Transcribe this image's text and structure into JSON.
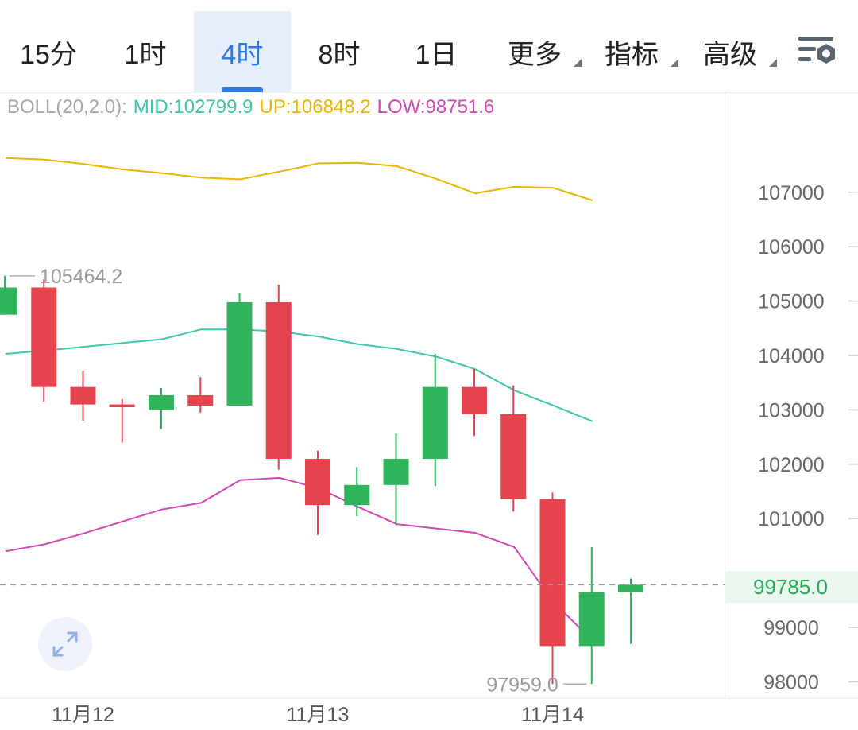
{
  "tabs": [
    {
      "label": "15分",
      "active": false,
      "dropdown": false
    },
    {
      "label": "1时",
      "active": false,
      "dropdown": false
    },
    {
      "label": "4时",
      "active": true,
      "dropdown": false
    },
    {
      "label": "8时",
      "active": false,
      "dropdown": false
    },
    {
      "label": "1日",
      "active": false,
      "dropdown": false
    },
    {
      "label": "更多",
      "active": false,
      "dropdown": true
    },
    {
      "label": "指标",
      "active": false,
      "dropdown": true
    },
    {
      "label": "高级",
      "active": false,
      "dropdown": true
    }
  ],
  "icons": {
    "settings": "chart-settings-icon",
    "expand": "expand-arrows-icon"
  },
  "indicator": {
    "label": "BOLL(20,2.0):",
    "mid": "MID:102799.9",
    "up": "UP:106848.2",
    "low": "LOW:98751.6"
  },
  "colors": {
    "accent": "#2b7ae6",
    "up_candle": "#2fb35b",
    "down_candle": "#e5444f",
    "boll_mid": "#3dc6a9",
    "boll_up": "#e8b500",
    "boll_low": "#d348b4"
  },
  "chart_data": {
    "type": "candlestick",
    "y_axis": {
      "ticks": [
        {
          "value": 98000,
          "label": "98000"
        },
        {
          "value": 99000,
          "label": "99000"
        },
        {
          "value": 101000,
          "label": "101000"
        },
        {
          "value": 102000,
          "label": "102000"
        },
        {
          "value": 103000,
          "label": "103000"
        },
        {
          "value": 104000,
          "label": "104000"
        },
        {
          "value": 105000,
          "label": "105000"
        },
        {
          "value": 106000,
          "label": "106000"
        },
        {
          "value": 107000,
          "label": "107000"
        }
      ],
      "ylim": [
        97700,
        108400
      ]
    },
    "x_axis": {
      "labels": [
        {
          "index": 2,
          "label": "11月12"
        },
        {
          "index": 8,
          "label": "11月13"
        },
        {
          "index": 14,
          "label": "11月14"
        }
      ]
    },
    "candles": [
      {
        "open": 104750,
        "high": 105464.2,
        "low": 104750,
        "close": 105250
      },
      {
        "open": 105250,
        "high": 105400,
        "low": 103150,
        "close": 103420
      },
      {
        "open": 103420,
        "high": 103720,
        "low": 102800,
        "close": 103100
      },
      {
        "open": 103100,
        "high": 103200,
        "low": 102400,
        "close": 103050
      },
      {
        "open": 103000,
        "high": 103400,
        "low": 102650,
        "close": 103270
      },
      {
        "open": 103270,
        "high": 103600,
        "low": 102950,
        "close": 103080
      },
      {
        "open": 103080,
        "high": 105150,
        "low": 103080,
        "close": 104980
      },
      {
        "open": 104980,
        "high": 105300,
        "low": 101900,
        "close": 102100
      },
      {
        "open": 102100,
        "high": 102250,
        "low": 100700,
        "close": 101250
      },
      {
        "open": 101250,
        "high": 101950,
        "low": 101050,
        "close": 101620
      },
      {
        "open": 101620,
        "high": 102570,
        "low": 100880,
        "close": 102100
      },
      {
        "open": 102100,
        "high": 104030,
        "low": 101600,
        "close": 103420
      },
      {
        "open": 103420,
        "high": 103750,
        "low": 102520,
        "close": 102920
      },
      {
        "open": 102920,
        "high": 103450,
        "low": 101130,
        "close": 101360
      },
      {
        "open": 101360,
        "high": 101480,
        "low": 97959.0,
        "close": 98660
      },
      {
        "open": 98660,
        "high": 100480,
        "low": 97959.0,
        "close": 99650
      },
      {
        "open": 99650,
        "high": 99900,
        "low": 98700,
        "close": 99785.0
      }
    ],
    "boll": {
      "up": [
        107630,
        107600,
        107520,
        107420,
        107350,
        107270,
        107240,
        107380,
        107530,
        107540,
        107480,
        107250,
        106980,
        107100,
        107080,
        106850
      ],
      "mid": [
        104030,
        104090,
        104160,
        104230,
        104300,
        104480,
        104480,
        104440,
        104350,
        104210,
        104120,
        103980,
        103750,
        103360,
        103080,
        102790
      ],
      "low": [
        100400,
        100530,
        100730,
        100950,
        101170,
        101290,
        101710,
        101750,
        101560,
        101220,
        100900,
        100820,
        100740,
        100480,
        99470,
        98760
      ]
    },
    "annotations": {
      "max_label": "105464.2",
      "min_label": "97959.0",
      "last_price": 99785.0,
      "last_price_label": "99785.0"
    }
  }
}
